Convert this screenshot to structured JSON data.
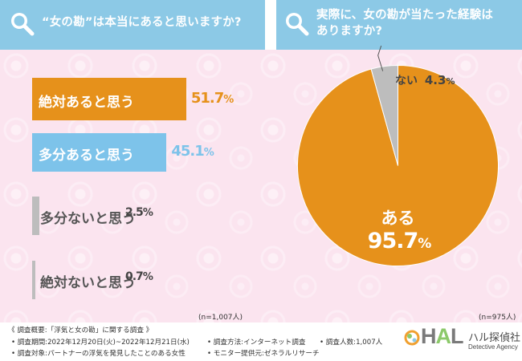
{
  "questions": {
    "left": "“女の勘”は本当にあると思いますか?",
    "right_line1": "実際に、女の勘が当たった経験は",
    "right_line2": "ありますか?"
  },
  "chart_data": [
    {
      "type": "bar",
      "orientation": "horizontal",
      "title": "“女の勘”は本当にあると思いますか?",
      "categories": [
        "絶対あると思う",
        "多分あると思う",
        "多分ないと思う",
        "絶対ないと思う"
      ],
      "values": [
        51.7,
        45.1,
        2.5,
        0.7
      ],
      "value_labels": [
        "51.7",
        "45.1",
        "2.5",
        "0.7"
      ],
      "unit": "%",
      "colors": [
        "#e6911b",
        "#7dc3ea",
        "#bdbdbd",
        "#bdbdbd"
      ],
      "n_label": "(n=1,007人)"
    },
    {
      "type": "pie",
      "title": "実際に、女の勘が当たった経験はありますか?",
      "labels": [
        "ある",
        "ない"
      ],
      "values": [
        95.7,
        4.3
      ],
      "value_labels": [
        "95.7",
        "4.3"
      ],
      "unit": "%",
      "colors": [
        "#e6911b",
        "#bdbdbd"
      ],
      "n_label": "(n=975人)"
    }
  ],
  "footer": {
    "summary": "《 調査概要:「浮気と女の勘」に関する調査 》",
    "period": "• 調査期間:2022年12月20日(火)~2022年12月21日(水)",
    "method": "• 調査方法:インターネット調査",
    "count": "• 調査人数:1,007人",
    "target": "• 調査対象:パートナーの浮気を発見したことのある女性",
    "provider": "• モニター提供元:ゼネラルリサーチ"
  },
  "logo": {
    "hal_h": "H",
    "hal_a": "A",
    "hal_l": "L",
    "name_jp": "ハル探偵社",
    "name_en": "Detective Agency"
  }
}
